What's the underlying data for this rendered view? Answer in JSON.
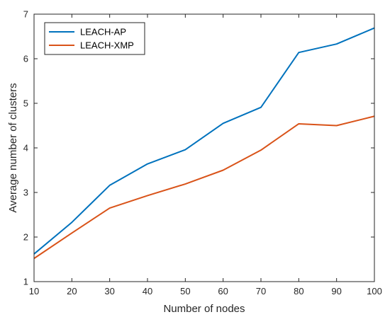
{
  "chart_data": {
    "type": "line",
    "title": "",
    "xlabel": "Number of nodes",
    "ylabel": "Average number of clusters",
    "x": [
      10,
      20,
      30,
      40,
      50,
      60,
      70,
      80,
      90,
      100
    ],
    "xlim": [
      10,
      100
    ],
    "ylim": [
      1,
      7
    ],
    "x_ticks": [
      "10",
      "20",
      "30",
      "40",
      "50",
      "60",
      "70",
      "80",
      "90",
      "100"
    ],
    "y_ticks": [
      "1",
      "2",
      "3",
      "4",
      "5",
      "6",
      "7"
    ],
    "grid": false,
    "legend_position": "top-left",
    "series": [
      {
        "name": "LEACH-AP",
        "color": "#0072BD",
        "values": [
          1.62,
          2.33,
          3.16,
          3.64,
          3.96,
          4.55,
          4.91,
          6.14,
          6.33,
          6.69
        ]
      },
      {
        "name": "LEACH-XMP",
        "color": "#D95319",
        "values": [
          1.52,
          2.09,
          2.65,
          2.93,
          3.19,
          3.5,
          3.95,
          4.54,
          4.5,
          4.71
        ]
      }
    ]
  }
}
